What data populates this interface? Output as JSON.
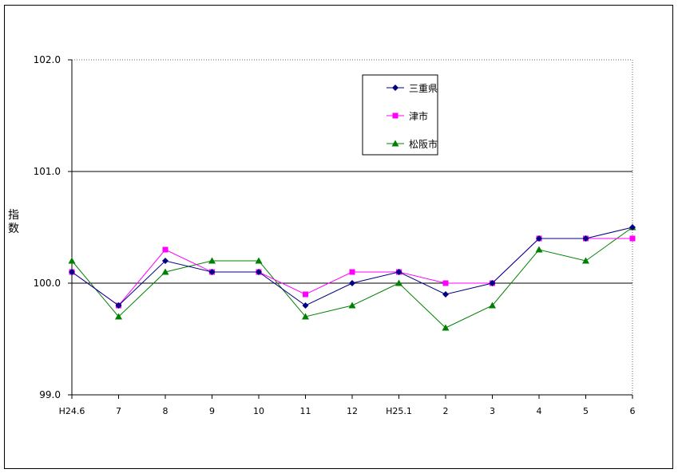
{
  "chart_data": {
    "type": "line",
    "title": "",
    "xlabel": "",
    "ylabel": "指数",
    "ylim": [
      99.0,
      102.0
    ],
    "y_ticks": [
      "99.0",
      "100.0",
      "101.0",
      "102.0"
    ],
    "categories": [
      "H24.6",
      "7",
      "8",
      "9",
      "10",
      "11",
      "12",
      "H25.1",
      "2",
      "3",
      "4",
      "5",
      "6"
    ],
    "gridlines": [
      100.0,
      101.0
    ],
    "legend_position": "top-center",
    "series": [
      {
        "name": "三重県",
        "color": "#000080",
        "marker": "diamond",
        "values": [
          100.1,
          99.8,
          100.2,
          100.1,
          100.1,
          99.8,
          100.0,
          100.1,
          99.9,
          100.0,
          100.4,
          100.4,
          100.5
        ]
      },
      {
        "name": "津市",
        "color": "#ff00ff",
        "marker": "square",
        "values": [
          100.1,
          99.8,
          100.3,
          100.1,
          100.1,
          99.9,
          100.1,
          100.1,
          100.0,
          100.0,
          100.4,
          100.4,
          100.4
        ]
      },
      {
        "name": "松阪市",
        "color": "#008000",
        "marker": "triangle",
        "values": [
          100.2,
          99.7,
          100.1,
          100.2,
          100.2,
          99.7,
          99.8,
          100.0,
          99.6,
          99.8,
          100.3,
          100.2,
          100.5
        ]
      }
    ]
  }
}
